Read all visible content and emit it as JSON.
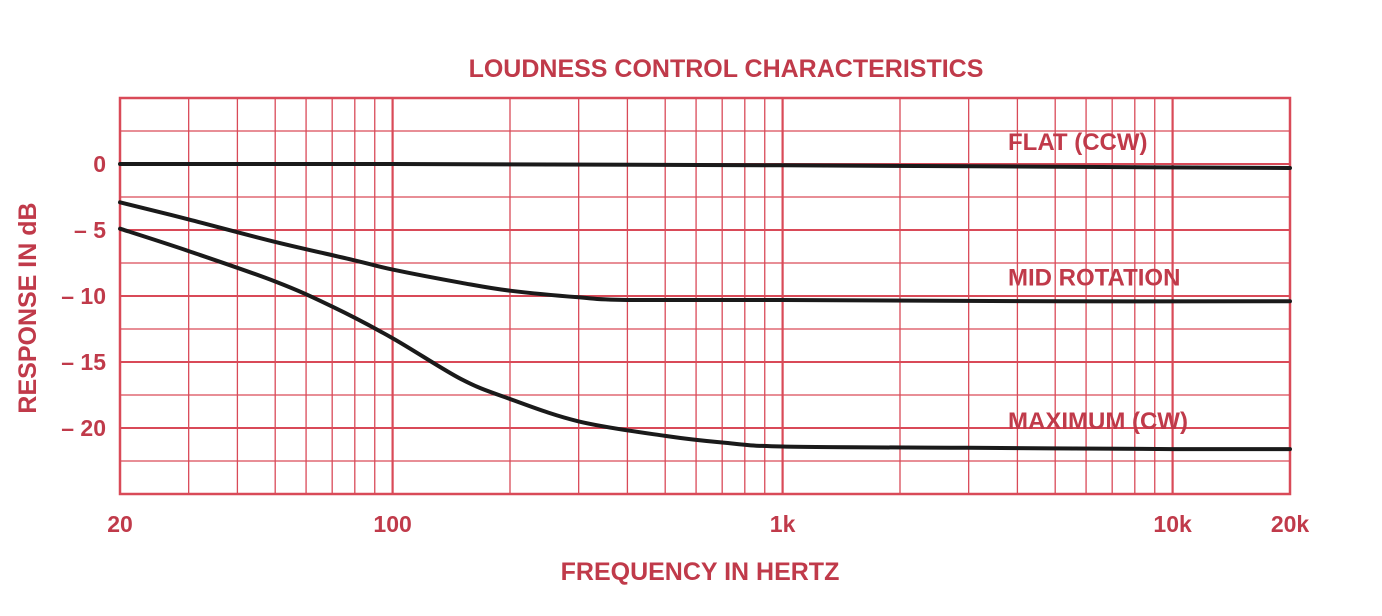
{
  "chart_data": {
    "type": "line",
    "title": "LOUDNESS CONTROL CHARACTERISTICS",
    "xlabel": "FREQUENCY IN HERTZ",
    "ylabel": "RESPONSE IN dB",
    "xscale": "log",
    "xlim": [
      20,
      20000
    ],
    "ylim": [
      -25,
      5
    ],
    "grid": true,
    "x_ticks": [
      {
        "value": 20,
        "label": "20"
      },
      {
        "value": 100,
        "label": "100"
      },
      {
        "value": 1000,
        "label": "1k"
      },
      {
        "value": 10000,
        "label": "10k"
      },
      {
        "value": 20000,
        "label": "20k"
      }
    ],
    "y_ticks": [
      {
        "value": 0,
        "label": "0"
      },
      {
        "value": -5,
        "label": "– 5"
      },
      {
        "value": -10,
        "label": "– 10"
      },
      {
        "value": -15,
        "label": "– 15"
      },
      {
        "value": -20,
        "label": "– 20"
      }
    ],
    "series": [
      {
        "name": "FLAT (CCW)",
        "points": [
          [
            20,
            0
          ],
          [
            100,
            0
          ],
          [
            1000,
            -0.1
          ],
          [
            20000,
            -0.3
          ]
        ]
      },
      {
        "name": "MID ROTATION",
        "points": [
          [
            20,
            -2.9
          ],
          [
            30,
            -4.2
          ],
          [
            50,
            -5.9
          ],
          [
            80,
            -7.3
          ],
          [
            100,
            -8
          ],
          [
            150,
            -9
          ],
          [
            200,
            -9.6
          ],
          [
            300,
            -10.1
          ],
          [
            400,
            -10.3
          ],
          [
            1000,
            -10.3
          ],
          [
            5000,
            -10.4
          ],
          [
            20000,
            -10.4
          ]
        ]
      },
      {
        "name": "MAXIMUM (CW)",
        "points": [
          [
            20,
            -4.9
          ],
          [
            30,
            -6.6
          ],
          [
            50,
            -8.9
          ],
          [
            70,
            -10.8
          ],
          [
            100,
            -13.2
          ],
          [
            150,
            -16.3
          ],
          [
            200,
            -17.8
          ],
          [
            300,
            -19.5
          ],
          [
            500,
            -20.6
          ],
          [
            700,
            -21.1
          ],
          [
            1000,
            -21.4
          ],
          [
            3000,
            -21.5
          ],
          [
            10000,
            -21.6
          ],
          [
            20000,
            -21.6
          ]
        ]
      }
    ],
    "colors": {
      "grid": "#d94a58",
      "labels": "#c03a4a",
      "series": "#1a1a1a"
    }
  }
}
